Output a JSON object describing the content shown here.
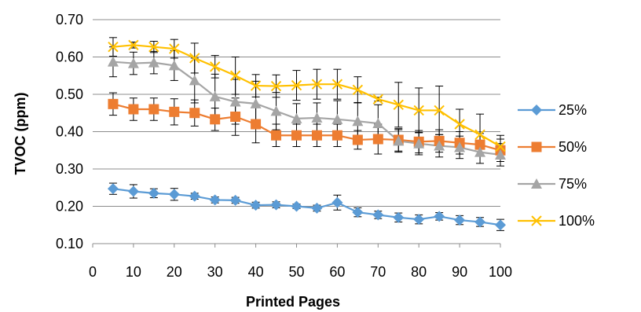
{
  "chart_data": {
    "type": "line",
    "title": "",
    "xlabel": "Printed Pages",
    "ylabel": "TVOC (ppm)",
    "xlim": [
      0,
      100
    ],
    "ylim": [
      0.1,
      0.7
    ],
    "x_ticks": [
      "0",
      "10",
      "20",
      "30",
      "40",
      "50",
      "60",
      "70",
      "80",
      "90",
      "100"
    ],
    "y_ticks": [
      "0.10",
      "0.20",
      "0.30",
      "0.40",
      "0.50",
      "0.60",
      "0.70"
    ],
    "grid": "horizontal",
    "legend_position": "right",
    "x": [
      5,
      10,
      15,
      20,
      25,
      30,
      35,
      40,
      45,
      50,
      55,
      60,
      65,
      70,
      75,
      80,
      85,
      90,
      95,
      100
    ],
    "series": [
      {
        "name": "25%",
        "color": "#5B9BD5",
        "marker": "diamond",
        "values": [
          0.247,
          0.24,
          0.235,
          0.232,
          0.227,
          0.217,
          0.216,
          0.203,
          0.204,
          0.2,
          0.195,
          0.21,
          0.184,
          0.177,
          0.17,
          0.165,
          0.173,
          0.163,
          0.158,
          0.15
        ],
        "errors": [
          0.015,
          0.018,
          0.012,
          0.016,
          0.008,
          0.008,
          0.008,
          0.008,
          0.008,
          0.006,
          0.008,
          0.02,
          0.012,
          0.01,
          0.012,
          0.012,
          0.01,
          0.012,
          0.012,
          0.015
        ]
      },
      {
        "name": "50%",
        "color": "#ED7D31",
        "marker": "square",
        "values": [
          0.474,
          0.46,
          0.46,
          0.453,
          0.45,
          0.433,
          0.44,
          0.42,
          0.39,
          0.39,
          0.39,
          0.39,
          0.378,
          0.38,
          0.378,
          0.373,
          0.375,
          0.37,
          0.365,
          0.35
        ],
        "errors": [
          0.03,
          0.03,
          0.03,
          0.035,
          0.035,
          0.03,
          0.05,
          0.05,
          0.03,
          0.03,
          0.03,
          0.03,
          0.025,
          0.04,
          0.03,
          0.03,
          0.03,
          0.03,
          0.03,
          0.03
        ]
      },
      {
        "name": "75%",
        "color": "#A5A5A5",
        "marker": "triangle",
        "values": [
          0.587,
          0.583,
          0.585,
          0.577,
          0.537,
          0.494,
          0.48,
          0.475,
          0.455,
          0.435,
          0.437,
          0.433,
          0.428,
          0.422,
          0.375,
          0.368,
          0.362,
          0.358,
          0.345,
          0.338
        ],
        "errors": [
          0.04,
          0.03,
          0.03,
          0.04,
          0.06,
          0.06,
          0.06,
          0.06,
          0.05,
          0.04,
          0.04,
          0.05,
          0.05,
          0.05,
          0.03,
          0.03,
          0.03,
          0.03,
          0.03,
          0.03
        ]
      },
      {
        "name": "100%",
        "color": "#FFC000",
        "marker": "x",
        "values": [
          0.627,
          0.632,
          0.627,
          0.622,
          0.597,
          0.574,
          0.55,
          0.523,
          0.522,
          0.524,
          0.527,
          0.527,
          0.512,
          0.487,
          0.472,
          0.457,
          0.457,
          0.42,
          0.392,
          0.36
        ],
        "errors": [
          0.025,
          0.008,
          0.015,
          0.025,
          0.04,
          0.03,
          0.05,
          0.03,
          0.03,
          0.04,
          0.04,
          0.04,
          0.035,
          0.005,
          0.06,
          0.06,
          0.065,
          0.04,
          0.055,
          0.03
        ]
      }
    ]
  }
}
